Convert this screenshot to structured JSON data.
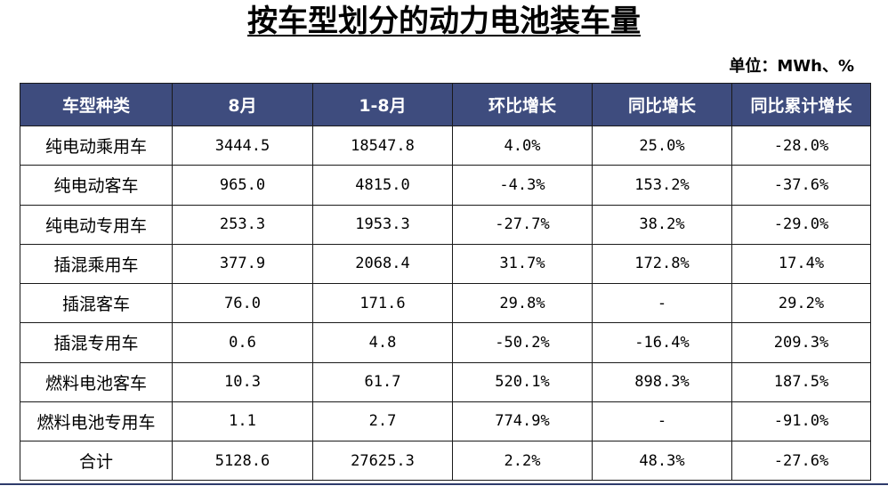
{
  "chart_data": {
    "type": "table",
    "title": "按车型划分的动力电池装车量",
    "unit": "单位：MWh、%",
    "columns": [
      "车型种类",
      "8月",
      "1-8月",
      "环比增长",
      "同比增长",
      "同比累计增长"
    ],
    "rows": [
      [
        "纯电动乘用车",
        "3444.5",
        "18547.8",
        "4.0%",
        "25.0%",
        "-28.0%"
      ],
      [
        "纯电动客车",
        "965.0",
        "4815.0",
        "-4.3%",
        "153.2%",
        "-37.6%"
      ],
      [
        "纯电动专用车",
        "253.3",
        "1953.3",
        "-27.7%",
        "38.2%",
        "-29.0%"
      ],
      [
        "插混乘用车",
        "377.9",
        "2068.4",
        "31.7%",
        "172.8%",
        "17.4%"
      ],
      [
        "插混客车",
        "76.0",
        "171.6",
        "29.8%",
        "-",
        "29.2%"
      ],
      [
        "插混专用车",
        "0.6",
        "4.8",
        "-50.2%",
        "-16.4%",
        "209.3%"
      ],
      [
        "燃料电池客车",
        "10.3",
        "61.7",
        "520.1%",
        "898.3%",
        "187.5%"
      ],
      [
        "燃料电池专用车",
        "1.1",
        "2.7",
        "774.9%",
        "-",
        "-91.0%"
      ],
      [
        "合计",
        "5128.6",
        "27625.3",
        "2.2%",
        "48.3%",
        "-27.6%"
      ]
    ]
  },
  "colors": {
    "header_background": "#3e4c7e",
    "header_text": "#ffffff",
    "border": "#1a1a1a"
  }
}
